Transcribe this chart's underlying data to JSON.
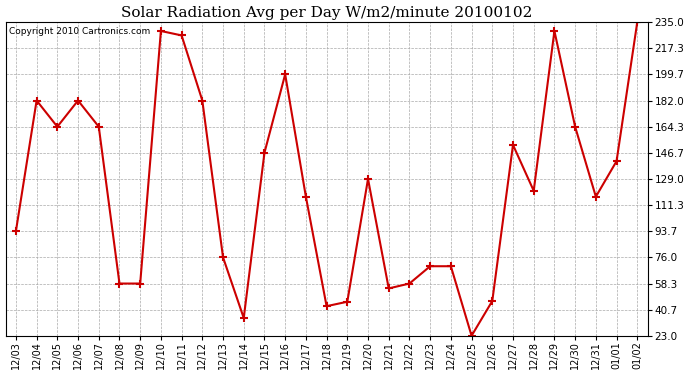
{
  "title": "Solar Radiation Avg per Day W/m2/minute 20100102",
  "copyright": "Copyright 2010 Cartronics.com",
  "labels": [
    "12/03",
    "12/04",
    "12/05",
    "12/06",
    "12/07",
    "12/08",
    "12/09",
    "12/10",
    "12/11",
    "12/12",
    "12/13",
    "12/14",
    "12/15",
    "12/16",
    "12/17",
    "12/18",
    "12/19",
    "12/20",
    "12/21",
    "12/22",
    "12/23",
    "12/24",
    "12/25",
    "12/26",
    "12/27",
    "12/28",
    "12/29",
    "12/30",
    "12/31",
    "01/01",
    "01/02"
  ],
  "values": [
    93.7,
    182.0,
    164.3,
    182.0,
    164.3,
    58.3,
    58.3,
    229.0,
    226.0,
    182.0,
    76.0,
    35.0,
    146.7,
    199.7,
    117.0,
    43.0,
    46.0,
    129.0,
    55.0,
    58.3,
    70.0,
    70.0,
    23.0,
    46.5,
    152.0,
    121.0,
    229.0,
    164.3,
    117.0,
    141.0,
    235.0
  ],
  "line_color": "#cc0000",
  "marker": "+",
  "marker_size": 6,
  "marker_linewidth": 1.5,
  "line_width": 1.5,
  "ylim": [
    23.0,
    235.0
  ],
  "yticks": [
    23.0,
    40.7,
    58.3,
    76.0,
    93.7,
    111.3,
    129.0,
    146.7,
    164.3,
    182.0,
    199.7,
    217.3,
    235.0
  ],
  "bg_color": "#ffffff",
  "plot_bg_color": "#ffffff",
  "grid_color": "#aaaaaa",
  "title_fontsize": 11,
  "copyright_fontsize": 6.5,
  "tick_fontsize": 7,
  "ytick_fontsize": 7.5
}
